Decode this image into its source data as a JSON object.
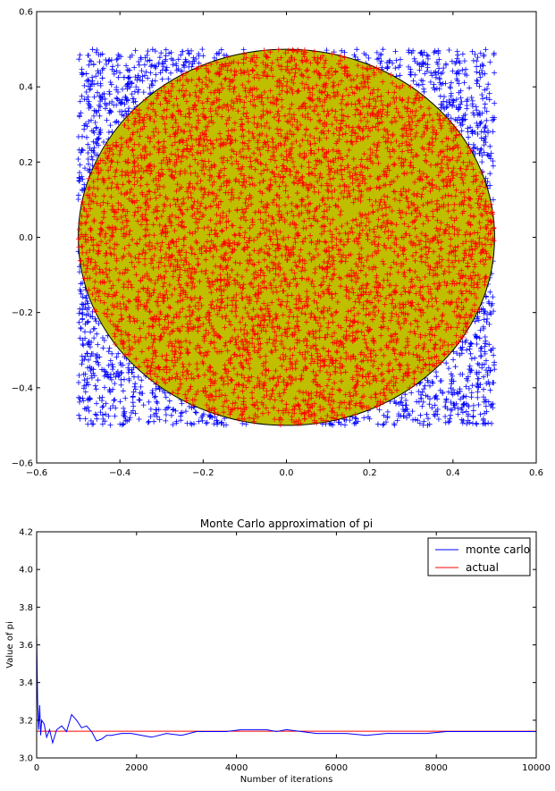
{
  "chart_data": [
    {
      "type": "scatter",
      "title": "",
      "xlabel": "",
      "ylabel": "",
      "xlim": [
        -0.6,
        0.6
      ],
      "ylim": [
        -0.6,
        0.6
      ],
      "xticks": [
        "−0.6",
        "−0.4",
        "−0.2",
        "0.0",
        "0.2",
        "0.4",
        "0.6"
      ],
      "yticks": [
        "−0.6",
        "−0.4",
        "−0.2",
        "0.0",
        "0.2",
        "0.4",
        "0.6"
      ],
      "circle": {
        "center": [
          0,
          0
        ],
        "radius": 0.5,
        "fill": "#bfbf00",
        "edge": "#000000"
      },
      "series": [
        {
          "marker": "+",
          "color": "#ff0000",
          "where": "inside unit-diameter circle",
          "x_range": [
            -0.5,
            0.5
          ],
          "y_range": [
            -0.5,
            0.5
          ]
        },
        {
          "marker": "+",
          "color": "#0000ff",
          "where": "outside circle, inside square",
          "x_range": [
            -0.5,
            0.5
          ],
          "y_range": [
            -0.5,
            0.5
          ]
        }
      ],
      "grid": false
    },
    {
      "type": "line",
      "title": "Monte Carlo approximation of pi",
      "xlabel": "Number of iterations",
      "ylabel": "Value of pi",
      "xlim": [
        0,
        10000
      ],
      "ylim": [
        3.0,
        4.2
      ],
      "xticks": [
        "0",
        "2000",
        "4000",
        "6000",
        "8000",
        "10000"
      ],
      "yticks": [
        "3.0",
        "3.2",
        "3.4",
        "3.6",
        "3.8",
        "4.0",
        "4.2"
      ],
      "legend_position": "top-right",
      "grid": false,
      "series": [
        {
          "name": "monte carlo",
          "color": "#0000ff",
          "x": [
            0,
            20,
            40,
            60,
            80,
            100,
            150,
            200,
            260,
            320,
            400,
            500,
            600,
            700,
            800,
            900,
            1000,
            1100,
            1200,
            1300,
            1400,
            1500,
            1700,
            1900,
            2100,
            2300,
            2600,
            2900,
            3200,
            3500,
            3800,
            4100,
            4400,
            4600,
            4800,
            5000,
            5300,
            5600,
            5900,
            6200,
            6600,
            7000,
            7400,
            7800,
            8200,
            8600,
            9000,
            9400,
            9800,
            10000
          ],
          "y": [
            3.66,
            3.3,
            3.15,
            3.28,
            3.12,
            3.2,
            3.18,
            3.11,
            3.15,
            3.08,
            3.15,
            3.17,
            3.14,
            3.23,
            3.2,
            3.16,
            3.17,
            3.14,
            3.09,
            3.1,
            3.12,
            3.12,
            3.13,
            3.13,
            3.12,
            3.11,
            3.13,
            3.12,
            3.14,
            3.14,
            3.14,
            3.15,
            3.15,
            3.15,
            3.14,
            3.15,
            3.14,
            3.13,
            3.13,
            3.13,
            3.12,
            3.13,
            3.13,
            3.13,
            3.14,
            3.14,
            3.14,
            3.14,
            3.14,
            3.14
          ]
        },
        {
          "name": "actual",
          "color": "#ff0000",
          "x": [
            0,
            10000
          ],
          "y": [
            3.14159,
            3.14159
          ]
        }
      ]
    }
  ]
}
